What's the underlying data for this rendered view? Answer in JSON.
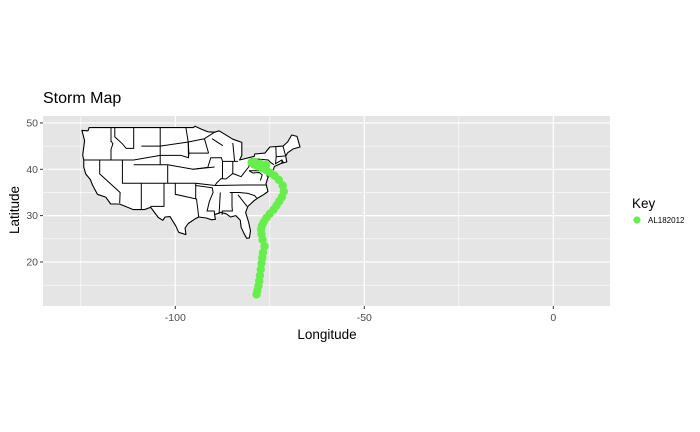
{
  "chart_data": {
    "type": "scatter",
    "title": "Storm Map",
    "xlabel": "Longitude",
    "ylabel": "Latitude",
    "xlim": [
      -135,
      15
    ],
    "ylim": [
      10.5,
      51.5
    ],
    "x_ticks": [
      -100,
      -50,
      0
    ],
    "y_ticks": [
      20,
      30,
      40,
      50
    ],
    "grid": true,
    "background": "#e5e5e5",
    "grid_color": "#ffffff",
    "legend": {
      "title": "Key",
      "placement": "right"
    },
    "series": [
      {
        "name": "AL182012",
        "color": "#66ee4c",
        "points": [
          {
            "x": -78.5,
            "y": 13.0
          },
          {
            "x": -78.3,
            "y": 13.8
          },
          {
            "x": -78.0,
            "y": 14.8
          },
          {
            "x": -77.8,
            "y": 15.9
          },
          {
            "x": -77.6,
            "y": 17.1
          },
          {
            "x": -77.4,
            "y": 18.4
          },
          {
            "x": -77.2,
            "y": 19.7
          },
          {
            "x": -77.0,
            "y": 20.9
          },
          {
            "x": -76.8,
            "y": 22.0
          },
          {
            "x": -76.4,
            "y": 23.4
          },
          {
            "x": -76.9,
            "y": 24.8
          },
          {
            "x": -77.2,
            "y": 26.0
          },
          {
            "x": -77.3,
            "y": 27.0
          },
          {
            "x": -77.1,
            "y": 27.8
          },
          {
            "x": -76.6,
            "y": 28.6
          },
          {
            "x": -75.9,
            "y": 29.5
          },
          {
            "x": -75.0,
            "y": 30.4
          },
          {
            "x": -74.0,
            "y": 31.3
          },
          {
            "x": -73.2,
            "y": 32.2
          },
          {
            "x": -72.5,
            "y": 33.1
          },
          {
            "x": -71.8,
            "y": 34.0
          },
          {
            "x": -71.3,
            "y": 35.2
          },
          {
            "x": -71.6,
            "y": 36.5
          },
          {
            "x": -72.6,
            "y": 37.7
          },
          {
            "x": -73.7,
            "y": 38.6
          },
          {
            "x": -74.8,
            "y": 39.2
          },
          {
            "x": -75.9,
            "y": 39.8
          },
          {
            "x": -77.0,
            "y": 40.2
          },
          {
            "x": -78.1,
            "y": 40.6
          },
          {
            "x": -79.1,
            "y": 41.0
          },
          {
            "x": -79.8,
            "y": 41.5
          },
          {
            "x": -79.0,
            "y": 41.6
          },
          {
            "x": -77.5,
            "y": 41.2
          },
          {
            "x": -76.0,
            "y": 40.9
          }
        ]
      }
    ],
    "basemap": {
      "us_outline": [
        [
          -124.7,
          48.4
        ],
        [
          -123.1,
          48.3
        ],
        [
          -122.8,
          49.0
        ],
        [
          -95.2,
          49.0
        ],
        [
          -94.8,
          49.3
        ],
        [
          -93.0,
          48.6
        ],
        [
          -91.4,
          48.1
        ],
        [
          -89.6,
          48.0
        ],
        [
          -88.4,
          48.3
        ],
        [
          -84.8,
          46.5
        ],
        [
          -82.4,
          45.8
        ],
        [
          -82.4,
          43.0
        ],
        [
          -83.0,
          42.0
        ],
        [
          -79.1,
          42.8
        ],
        [
          -79.0,
          43.3
        ],
        [
          -76.3,
          43.5
        ],
        [
          -75.0,
          44.8
        ],
        [
          -71.5,
          45.0
        ],
        [
          -70.3,
          45.9
        ],
        [
          -69.2,
          47.4
        ],
        [
          -67.8,
          47.1
        ],
        [
          -67.0,
          44.8
        ],
        [
          -68.8,
          44.4
        ],
        [
          -70.2,
          43.6
        ],
        [
          -70.8,
          42.9
        ],
        [
          -70.5,
          41.6
        ],
        [
          -71.9,
          41.3
        ],
        [
          -73.8,
          40.6
        ],
        [
          -74.0,
          40.0
        ],
        [
          -74.9,
          38.9
        ],
        [
          -75.5,
          38.2
        ],
        [
          -76.0,
          36.9
        ],
        [
          -75.5,
          35.2
        ],
        [
          -76.5,
          34.6
        ],
        [
          -78.0,
          33.9
        ],
        [
          -79.2,
          33.2
        ],
        [
          -80.8,
          32.0
        ],
        [
          -81.4,
          30.7
        ],
        [
          -80.6,
          28.6
        ],
        [
          -80.1,
          26.7
        ],
        [
          -80.4,
          25.2
        ],
        [
          -81.1,
          25.1
        ],
        [
          -81.8,
          26.1
        ],
        [
          -82.6,
          27.5
        ],
        [
          -82.8,
          29.0
        ],
        [
          -84.0,
          30.0
        ],
        [
          -85.4,
          29.7
        ],
        [
          -86.5,
          30.4
        ],
        [
          -88.0,
          30.7
        ],
        [
          -89.6,
          30.2
        ],
        [
          -89.4,
          29.2
        ],
        [
          -90.4,
          29.1
        ],
        [
          -91.8,
          29.5
        ],
        [
          -93.8,
          29.7
        ],
        [
          -94.8,
          29.3
        ],
        [
          -96.6,
          28.3
        ],
        [
          -97.4,
          27.3
        ],
        [
          -97.2,
          25.9
        ],
        [
          -99.1,
          26.4
        ],
        [
          -99.9,
          27.8
        ],
        [
          -101.4,
          29.8
        ],
        [
          -102.7,
          29.7
        ],
        [
          -103.3,
          29.0
        ],
        [
          -104.5,
          29.6
        ],
        [
          -106.5,
          31.8
        ],
        [
          -108.2,
          31.3
        ],
        [
          -111.1,
          31.3
        ],
        [
          -114.8,
          32.5
        ],
        [
          -117.1,
          32.5
        ],
        [
          -118.4,
          34.0
        ],
        [
          -120.6,
          34.6
        ],
        [
          -121.9,
          36.6
        ],
        [
          -122.5,
          37.8
        ],
        [
          -123.7,
          39.0
        ],
        [
          -124.2,
          40.4
        ],
        [
          -124.2,
          42.0
        ],
        [
          -124.5,
          43.0
        ],
        [
          -124.0,
          46.2
        ],
        [
          -124.7,
          48.4
        ]
      ],
      "state_lines": [
        [
          [
            -117.0,
            49.0
          ],
          [
            -117.0,
            46.0
          ],
          [
            -116.9,
            46.0
          ],
          [
            -116.5,
            45.5
          ],
          [
            -117.0,
            44.3
          ],
          [
            -117.0,
            42.0
          ]
        ],
        [
          [
            -124.2,
            42.0
          ],
          [
            -111.0,
            42.0
          ],
          [
            -104.0,
            43.0
          ],
          [
            -98.5,
            43.0
          ],
          [
            -96.5,
            42.5
          ],
          [
            -96.4,
            43.5
          ],
          [
            -91.2,
            43.5
          ]
        ],
        [
          [
            -120.0,
            42.0
          ],
          [
            -120.0,
            39.0
          ],
          [
            -114.6,
            35.0
          ],
          [
            -114.7,
            32.7
          ]
        ],
        [
          [
            -111.0,
            49.0
          ],
          [
            -111.0,
            44.5
          ],
          [
            -113.0,
            44.5
          ],
          [
            -114.0,
            45.5
          ],
          [
            -116.0,
            47.0
          ],
          [
            -116.0,
            49.0
          ]
        ],
        [
          [
            -114.0,
            42.0
          ],
          [
            -114.0,
            37.0
          ],
          [
            -109.0,
            37.0
          ],
          [
            -103.0,
            37.0
          ],
          [
            -102.0,
            37.0
          ],
          [
            -94.6,
            37.0
          ],
          [
            -89.5,
            36.5
          ],
          [
            -81.7,
            36.6
          ],
          [
            -75.9,
            36.6
          ]
        ],
        [
          [
            -111.0,
            41.0
          ],
          [
            -102.0,
            41.0
          ],
          [
            -95.3,
            40.0
          ],
          [
            -89.6,
            40.5
          ]
        ],
        [
          [
            -109.0,
            45.0
          ],
          [
            -104.0,
            45.0
          ],
          [
            -96.6,
            45.9
          ],
          [
            -92.3,
            46.6
          ]
        ],
        [
          [
            -109.0,
            37.0
          ],
          [
            -109.0,
            31.3
          ]
        ],
        [
          [
            -103.0,
            37.0
          ],
          [
            -103.0,
            32.0
          ],
          [
            -106.6,
            32.0
          ]
        ],
        [
          [
            -104.0,
            49.0
          ],
          [
            -104.0,
            41.0
          ]
        ],
        [
          [
            -102.0,
            41.0
          ],
          [
            -102.0,
            37.0
          ]
        ],
        [
          [
            -97.2,
            49.0
          ],
          [
            -96.6,
            45.9
          ],
          [
            -96.5,
            42.5
          ]
        ],
        [
          [
            -100.0,
            37.0
          ],
          [
            -100.0,
            34.6
          ],
          [
            -94.4,
            33.6
          ],
          [
            -94.0,
            31.0
          ],
          [
            -93.8,
            29.7
          ]
        ],
        [
          [
            -94.6,
            37.0
          ],
          [
            -94.6,
            33.6
          ]
        ],
        [
          [
            -94.6,
            36.5
          ],
          [
            -90.2,
            36.0
          ],
          [
            -90.0,
            35.0
          ],
          [
            -91.0,
            33.0
          ],
          [
            -91.6,
            31.0
          ],
          [
            -89.7,
            31.0
          ],
          [
            -89.6,
            30.2
          ]
        ],
        [
          [
            -88.1,
            35.0
          ],
          [
            -88.4,
            30.4
          ]
        ],
        [
          [
            -85.0,
            35.0
          ],
          [
            -85.0,
            32.0
          ],
          [
            -84.9,
            31.0
          ],
          [
            -87.6,
            31.0
          ],
          [
            -87.6,
            30.2
          ]
        ],
        [
          [
            -85.6,
            35.0
          ],
          [
            -84.3,
            35.0
          ],
          [
            -83.1,
            35.0
          ],
          [
            -80.8,
            34.8
          ],
          [
            -79.0,
            34.3
          ],
          [
            -78.5,
            33.8
          ]
        ],
        [
          [
            -83.4,
            34.5
          ],
          [
            -81.0,
            32.0
          ]
        ],
        [
          [
            -89.5,
            36.5
          ],
          [
            -89.1,
            37.0
          ],
          [
            -87.9,
            38.0
          ],
          [
            -86.6,
            37.9
          ],
          [
            -84.8,
            39.1
          ],
          [
            -82.6,
            38.4
          ],
          [
            -80.5,
            40.6
          ],
          [
            -80.5,
            42.0
          ]
        ],
        [
          [
            -91.4,
            40.4
          ],
          [
            -90.6,
            42.5
          ],
          [
            -87.8,
            42.5
          ],
          [
            -87.5,
            41.7
          ],
          [
            -84.8,
            41.7
          ],
          [
            -83.4,
            41.7
          ]
        ],
        [
          [
            -87.5,
            41.7
          ],
          [
            -87.5,
            38.0
          ]
        ],
        [
          [
            -84.8,
            41.7
          ],
          [
            -84.8,
            39.1
          ]
        ],
        [
          [
            -80.5,
            42.0
          ],
          [
            -79.8,
            42.0
          ],
          [
            -79.8,
            42.3
          ],
          [
            -75.4,
            42.0
          ],
          [
            -74.7,
            41.4
          ],
          [
            -73.9,
            41.0
          ]
        ],
        [
          [
            -80.5,
            39.7
          ],
          [
            -75.8,
            39.7
          ],
          [
            -75.0,
            40.0
          ]
        ],
        [
          [
            -80.5,
            39.7
          ],
          [
            -79.5,
            39.2
          ],
          [
            -77.8,
            39.3
          ],
          [
            -77.0,
            38.8
          ],
          [
            -77.5,
            37.6
          ],
          [
            -77.3,
            38.0
          ]
        ],
        [
          [
            -75.8,
            39.7
          ],
          [
            -75.7,
            38.5
          ],
          [
            -75.2,
            38.5
          ]
        ],
        [
          [
            -73.3,
            42.7
          ],
          [
            -73.5,
            41.2
          ],
          [
            -71.8,
            42.0
          ],
          [
            -71.4,
            41.4
          ]
        ],
        [
          [
            -73.3,
            42.7
          ],
          [
            -70.8,
            42.9
          ]
        ],
        [
          [
            -73.4,
            45.0
          ],
          [
            -73.3,
            42.7
          ]
        ],
        [
          [
            -71.5,
            45.0
          ],
          [
            -71.0,
            43.5
          ],
          [
            -70.8,
            42.9
          ]
        ],
        [
          [
            -71.8,
            42.0
          ],
          [
            -71.8,
            41.3
          ]
        ],
        [
          [
            -96.4,
            43.5
          ],
          [
            -96.6,
            45.9
          ]
        ],
        [
          [
            -91.2,
            43.5
          ],
          [
            -92.3,
            46.6
          ]
        ],
        [
          [
            -95.3,
            40.0
          ],
          [
            -91.4,
            40.4
          ]
        ],
        [
          [
            -89.6,
            48.0
          ],
          [
            -92.3,
            46.6
          ]
        ],
        [
          [
            -90.3,
            46.6
          ],
          [
            -87.4,
            45.1
          ]
        ],
        [
          [
            -84.8,
            45.7
          ],
          [
            -84.3,
            41.7
          ]
        ]
      ]
    }
  }
}
